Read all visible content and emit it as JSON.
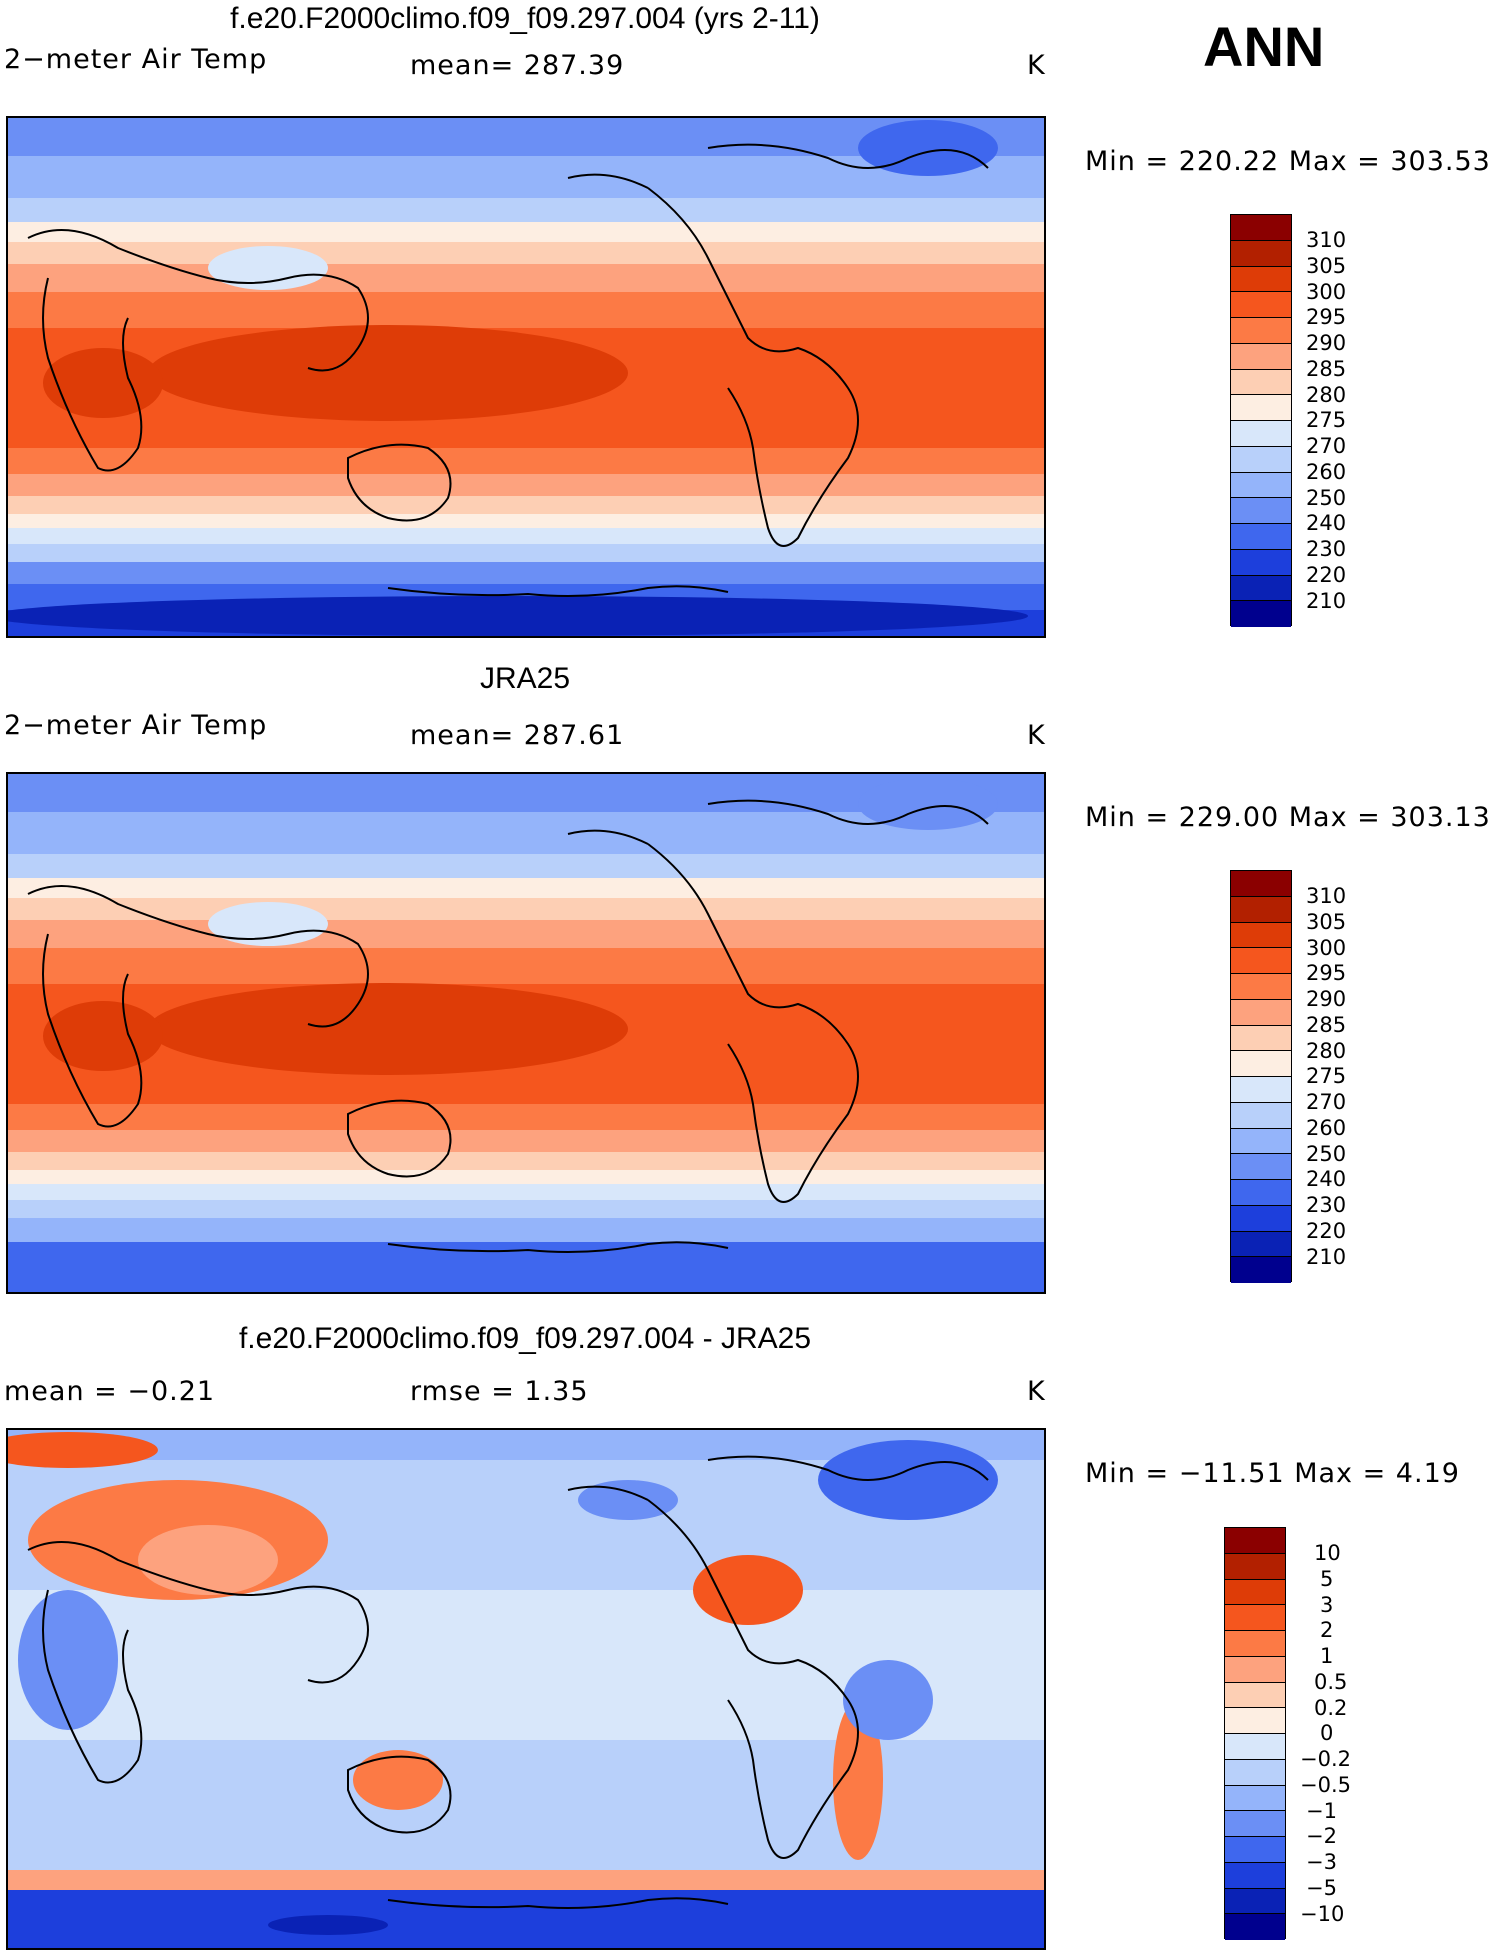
{
  "header": {
    "season": "ANN"
  },
  "panels": [
    {
      "title": "f.e20.F2000climo.f09_f09.297.004 (yrs 2-11)",
      "left_text": "2−meter Air Temp",
      "center_text": "mean=  287.39",
      "units": "K",
      "minmax": "Min  =  220.22  Max  =  303.53",
      "map_kind": "absolute",
      "colorbar": {
        "colors": [
          "#8b0000",
          "#b22000",
          "#de3c07",
          "#f5561e",
          "#fc7a45",
          "#fda27e",
          "#fdcfb4",
          "#fdeee2",
          "#d8e7fa",
          "#b8d0fa",
          "#94b4fa",
          "#6b8ff5",
          "#3f67ee",
          "#1d3fdc",
          "#0a22b5",
          "#00008e"
        ],
        "labels": [
          "310",
          "305",
          "300",
          "295",
          "290",
          "285",
          "280",
          "275",
          "270",
          "260",
          "250",
          "240",
          "230",
          "220",
          "210"
        ]
      }
    },
    {
      "title": "JRA25",
      "left_text": "2−meter Air Temp",
      "center_text": "mean=  287.61",
      "units": "K",
      "minmax": "Min  =  229.00  Max  =  303.13",
      "map_kind": "absolute",
      "colorbar": {
        "colors": [
          "#8b0000",
          "#b22000",
          "#de3c07",
          "#f5561e",
          "#fc7a45",
          "#fda27e",
          "#fdcfb4",
          "#fdeee2",
          "#d8e7fa",
          "#b8d0fa",
          "#94b4fa",
          "#6b8ff5",
          "#3f67ee",
          "#1d3fdc",
          "#0a22b5",
          "#00008e"
        ],
        "labels": [
          "310",
          "305",
          "300",
          "295",
          "290",
          "285",
          "280",
          "275",
          "270",
          "260",
          "250",
          "240",
          "230",
          "220",
          "210"
        ]
      }
    },
    {
      "title": "f.e20.F2000climo.f09_f09.297.004 - JRA25",
      "left_text": "mean  =   −0.21",
      "center_text": "rmse  =     1.35",
      "units": "K",
      "minmax": "Min  =  −11.51  Max  =     4.19",
      "map_kind": "difference",
      "colorbar": {
        "colors": [
          "#8b0000",
          "#b22000",
          "#de3c07",
          "#f5561e",
          "#fc7a45",
          "#fda27e",
          "#fdcfb4",
          "#fdeee2",
          "#d8e7fa",
          "#b8d0fa",
          "#94b4fa",
          "#6b8ff5",
          "#3f67ee",
          "#1d3fdc",
          "#0a22b5",
          "#00008e"
        ],
        "labels": [
          "10",
          "5",
          "3",
          "2",
          "1",
          "0.5",
          "0.2",
          "0",
          "−0.2",
          "−0.5",
          "−1",
          "−2",
          "−3",
          "−5",
          "−10"
        ]
      }
    }
  ]
}
